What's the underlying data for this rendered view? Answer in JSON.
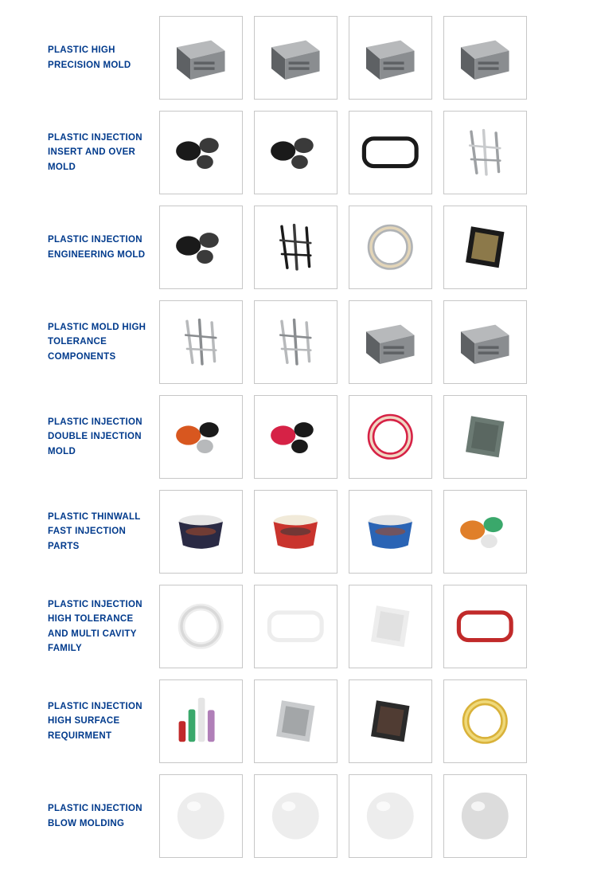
{
  "label_color": "#003a8c",
  "border_color": "#c7c7c7",
  "background": "#ffffff",
  "label_fontsize": 11.5,
  "thumb_size": 105,
  "cols_per_row": 4,
  "rows": [
    {
      "label": "PLASTIC HIGH PRECISION MOLD",
      "items": [
        {
          "name": "mold-block-1",
          "palette": [
            "#8a8d90",
            "#b7b9bb",
            "#5e6164"
          ]
        },
        {
          "name": "mold-block-2",
          "palette": [
            "#8a8d90",
            "#b7b9bb",
            "#5e6164"
          ]
        },
        {
          "name": "mold-block-3",
          "palette": [
            "#8a8d90",
            "#b7b9bb",
            "#5e6164"
          ]
        },
        {
          "name": "mold-block-4",
          "palette": [
            "#8a8d90",
            "#b7b9bb",
            "#5e6164"
          ]
        }
      ]
    },
    {
      "label": "PLASTIC INJECTION INSERT AND OVER MOLD",
      "items": [
        {
          "name": "black-housing",
          "palette": [
            "#1a1a1a",
            "#3a3a3a"
          ]
        },
        {
          "name": "black-connector-set",
          "palette": [
            "#1a1a1a",
            "#3a3a3a"
          ]
        },
        {
          "name": "black-frame-bezel",
          "palette": [
            "#1a1a1a",
            "#3a3a3a"
          ]
        },
        {
          "name": "metal-bracket-wires",
          "palette": [
            "#9ea1a4",
            "#c9cbcd",
            "#6b6e71"
          ]
        }
      ]
    },
    {
      "label": "PLASTIC INJECTION ENGINEERING MOLD",
      "items": [
        {
          "name": "black-motor-housing",
          "palette": [
            "#1a1a1a",
            "#3a3a3a"
          ]
        },
        {
          "name": "black-bracket-assembly",
          "palette": [
            "#1a1a1a",
            "#3a3a3a"
          ]
        },
        {
          "name": "ring-washers",
          "palette": [
            "#b0b3b6",
            "#e3d5b8",
            "#8a8d90"
          ]
        },
        {
          "name": "black-gold-panels",
          "palette": [
            "#1a1a1a",
            "#d9b96a"
          ]
        }
      ]
    },
    {
      "label": "PLASTIC MOLD HIGH TOLERANCE COMPONENTS",
      "items": [
        {
          "name": "aluminum-linkage",
          "palette": [
            "#b7b9bb",
            "#8a8d90"
          ]
        },
        {
          "name": "aluminum-hinge",
          "palette": [
            "#b7b9bb",
            "#8a8d90"
          ]
        },
        {
          "name": "steel-mold-base-1",
          "palette": [
            "#8a8d90",
            "#b7b9bb",
            "#5e6164"
          ]
        },
        {
          "name": "steel-mold-base-2",
          "palette": [
            "#8a8d90",
            "#b7b9bb",
            "#5e6164"
          ]
        }
      ]
    },
    {
      "label": "PLASTIC INJECTION DOUBLE INJECTION MOLD",
      "items": [
        {
          "name": "tool-grip-orange-black",
          "palette": [
            "#d8571f",
            "#1a1a1a",
            "#b7b9bb"
          ]
        },
        {
          "name": "red-black-caps",
          "palette": [
            "#d62246",
            "#1a1a1a"
          ]
        },
        {
          "name": "red-ring-gear",
          "palette": [
            "#d62246",
            "#f0d7c3"
          ]
        },
        {
          "name": "gray-triangular-cover",
          "palette": [
            "#6b7a73",
            "#4f5a55"
          ]
        }
      ]
    },
    {
      "label": "PLASTIC THINWALL FAST INJECTION PARTS",
      "items": [
        {
          "name": "sundae-tub-dark",
          "palette": [
            "#2a2a44",
            "#e5e5e5",
            "#a24a2a"
          ]
        },
        {
          "name": "drumstick-tub-red",
          "palette": [
            "#c9342d",
            "#f1ead9",
            "#3a3a3a"
          ]
        },
        {
          "name": "parlour-tub-blue",
          "palette": [
            "#2a64b5",
            "#e5e5e5",
            "#a24a2a"
          ]
        },
        {
          "name": "baby-bottle-pacifiers",
          "palette": [
            "#e07f2a",
            "#3aa86b",
            "#e5e5e5"
          ]
        }
      ]
    },
    {
      "label": "PLASTIC INJECTION HIGH TOLERANCE AND MULTI CAVITY FAMILY",
      "items": [
        {
          "name": "clear-syringe-barrels",
          "palette": [
            "#ededed",
            "#d9d9d9"
          ]
        },
        {
          "name": "clear-ladder-frame",
          "palette": [
            "#ededed",
            "#d9d9d9"
          ]
        },
        {
          "name": "clear-headlamp-lens",
          "palette": [
            "#ededed",
            "#d9d9d9"
          ]
        },
        {
          "name": "red-clear-visor",
          "palette": [
            "#c12a2a",
            "#ededed"
          ]
        }
      ]
    },
    {
      "label": "PLASTIC INJECTION HIGH SURFACE REQUIRMENT",
      "items": [
        {
          "name": "cosmetic-bottles",
          "palette": [
            "#c12a2a",
            "#3aa86b",
            "#e5e5e5",
            "#b07fb8"
          ]
        },
        {
          "name": "silver-clutch-box",
          "palette": [
            "#c9cbcd",
            "#8a8d90",
            "#e5e5e5"
          ]
        },
        {
          "name": "compact-dark-cases",
          "palette": [
            "#2a2a2a",
            "#6b4a3a",
            "#c9cbcd"
          ]
        },
        {
          "name": "gold-chrome-rings",
          "palette": [
            "#d9b23a",
            "#efd97a"
          ]
        }
      ]
    },
    {
      "label": "PLASTIC INJECTION BLOW MOLDING",
      "items": [
        {
          "name": "clear-globe-faceted",
          "palette": [
            "#ededed",
            "#d9d9d9"
          ]
        },
        {
          "name": "clear-egg-textured",
          "palette": [
            "#ededed",
            "#d9d9d9"
          ]
        },
        {
          "name": "clear-lantern-ribbed",
          "palette": [
            "#ededed",
            "#d9d9d9"
          ]
        },
        {
          "name": "frosted-sphere",
          "palette": [
            "#dcdcdc",
            "#c0c0c0"
          ]
        }
      ]
    }
  ]
}
